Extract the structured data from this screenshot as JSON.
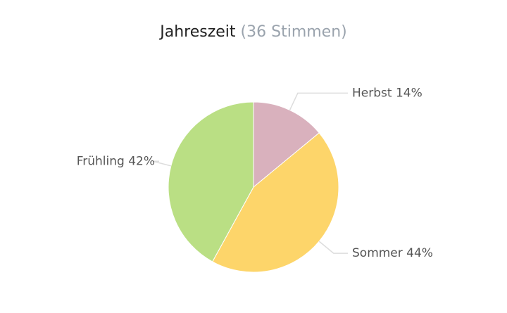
{
  "chart_data": {
    "type": "pie",
    "title": "Jahreszeit",
    "subtitle": "(36 Stimmen)",
    "categories": [
      "Herbst",
      "Sommer",
      "Frühling"
    ],
    "values": [
      14,
      44,
      42
    ],
    "value_labels": [
      "14%",
      "44%",
      "42%"
    ],
    "colors": [
      "#d9b1bd",
      "#fdd56a",
      "#badf84"
    ]
  }
}
